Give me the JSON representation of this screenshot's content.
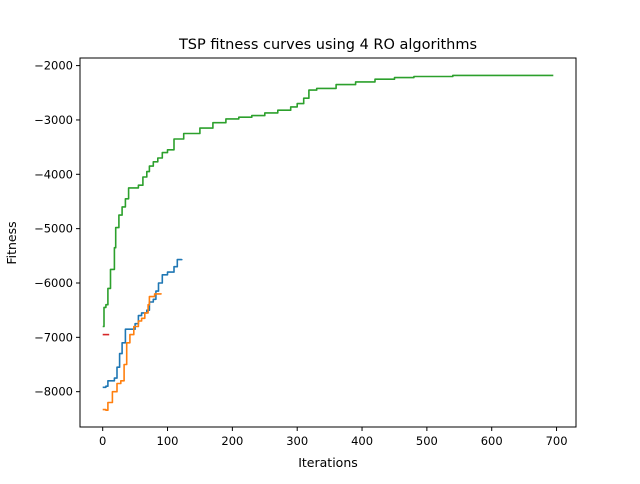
{
  "chart_data": {
    "type": "line",
    "title": "TSP fitness curves using 4 RO algorithms",
    "xlabel": "Iterations",
    "ylabel": "Fitness",
    "xlim": [
      -35,
      730
    ],
    "ylim": [
      -8650,
      -1860
    ],
    "xticks": [
      0,
      100,
      200,
      300,
      400,
      500,
      600,
      700
    ],
    "yticks": [
      -8000,
      -7000,
      -6000,
      -5000,
      -4000,
      -3000,
      -2000
    ],
    "grid": false,
    "legend": "none",
    "series": [
      {
        "color": "#1f77b4",
        "points": [
          [
            0,
            -7920
          ],
          [
            5,
            -7900
          ],
          [
            8,
            -7800
          ],
          [
            18,
            -7750
          ],
          [
            22,
            -7550
          ],
          [
            26,
            -7300
          ],
          [
            30,
            -7100
          ],
          [
            35,
            -6850
          ],
          [
            45,
            -6850
          ],
          [
            50,
            -6750
          ],
          [
            55,
            -6600
          ],
          [
            60,
            -6550
          ],
          [
            68,
            -6500
          ],
          [
            72,
            -6350
          ],
          [
            78,
            -6300
          ],
          [
            82,
            -6150
          ],
          [
            86,
            -6000
          ],
          [
            92,
            -5850
          ],
          [
            100,
            -5800
          ],
          [
            110,
            -5700
          ],
          [
            115,
            -5570
          ],
          [
            122,
            -5560
          ]
        ]
      },
      {
        "color": "#ff7f0e",
        "points": [
          [
            0,
            -8330
          ],
          [
            5,
            -8340
          ],
          [
            8,
            -8200
          ],
          [
            15,
            -8000
          ],
          [
            22,
            -7850
          ],
          [
            28,
            -7800
          ],
          [
            33,
            -7500
          ],
          [
            37,
            -7100
          ],
          [
            42,
            -6950
          ],
          [
            48,
            -6800
          ],
          [
            55,
            -6700
          ],
          [
            60,
            -6650
          ],
          [
            65,
            -6550
          ],
          [
            70,
            -6400
          ],
          [
            72,
            -6250
          ],
          [
            80,
            -6200
          ],
          [
            90,
            -6190
          ]
        ]
      },
      {
        "color": "#2ca02c",
        "points": [
          [
            0,
            -6800
          ],
          [
            2,
            -6450
          ],
          [
            5,
            -6400
          ],
          [
            8,
            -6100
          ],
          [
            12,
            -5750
          ],
          [
            18,
            -5350
          ],
          [
            20,
            -4980
          ],
          [
            25,
            -4750
          ],
          [
            30,
            -4600
          ],
          [
            35,
            -4450
          ],
          [
            40,
            -4250
          ],
          [
            55,
            -4200
          ],
          [
            62,
            -4050
          ],
          [
            68,
            -3950
          ],
          [
            72,
            -3850
          ],
          [
            78,
            -3770
          ],
          [
            85,
            -3700
          ],
          [
            92,
            -3600
          ],
          [
            100,
            -3550
          ],
          [
            110,
            -3350
          ],
          [
            125,
            -3250
          ],
          [
            150,
            -3150
          ],
          [
            170,
            -3050
          ],
          [
            190,
            -2980
          ],
          [
            210,
            -2950
          ],
          [
            230,
            -2920
          ],
          [
            250,
            -2870
          ],
          [
            270,
            -2820
          ],
          [
            290,
            -2760
          ],
          [
            300,
            -2700
          ],
          [
            310,
            -2600
          ],
          [
            318,
            -2450
          ],
          [
            330,
            -2420
          ],
          [
            360,
            -2350
          ],
          [
            390,
            -2300
          ],
          [
            420,
            -2250
          ],
          [
            450,
            -2220
          ],
          [
            480,
            -2200
          ],
          [
            540,
            -2180
          ],
          [
            695,
            -2180
          ]
        ]
      },
      {
        "color": "#d62728",
        "points": [
          [
            0,
            -6950
          ],
          [
            10,
            -6950
          ]
        ]
      }
    ]
  }
}
